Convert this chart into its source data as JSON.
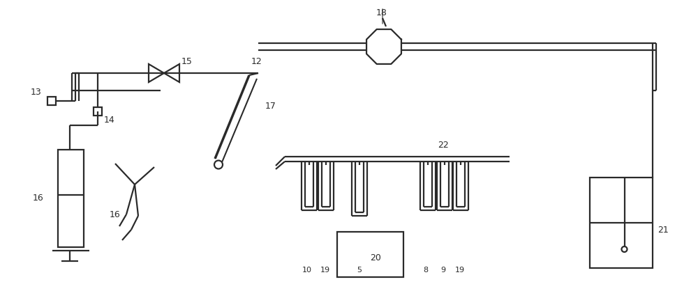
{
  "bg_color": "#ffffff",
  "line_color": "#2a2a2a",
  "lw": 1.6,
  "figsize": [
    10.0,
    4.18
  ],
  "dpi": 100
}
